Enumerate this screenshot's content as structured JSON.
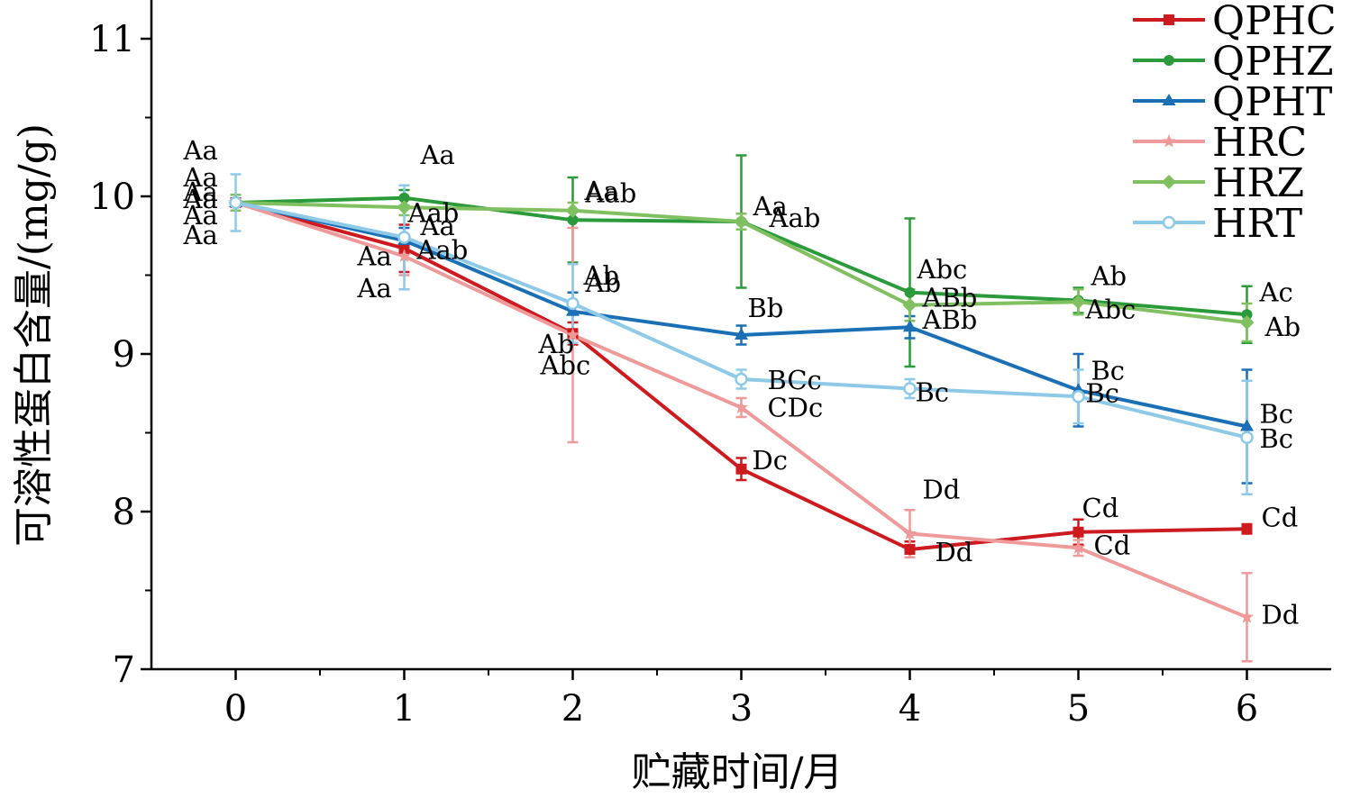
{
  "chart_data": {
    "type": "line",
    "title": "",
    "xlabel": "贮藏时间/月",
    "ylabel": "可溶性蛋白含量/(mg/g)",
    "x": [
      0,
      1,
      2,
      3,
      4,
      5,
      6
    ],
    "x_tick_labels": [
      "0",
      "1",
      "2",
      "3",
      "4",
      "5",
      "6"
    ],
    "xlim": [
      -0.5,
      6.5
    ],
    "y_ticks": [
      7,
      8,
      9,
      10,
      11
    ],
    "y_tick_labels": [
      "7",
      "8",
      "9",
      "10",
      "11"
    ],
    "ylim": [
      7,
      11.2
    ],
    "legend_position": "top-right",
    "series": [
      {
        "name": "QPHC",
        "color": "#cc1a1f",
        "marker": "square",
        "values": [
          9.96,
          9.67,
          9.13,
          8.27,
          7.76,
          7.87,
          7.89
        ],
        "errors": [
          0.05,
          0.15,
          0.07,
          0.07,
          0.05,
          0.08,
          0.03
        ],
        "labels": [
          "Aa",
          "Aa",
          "Abc",
          "Dc",
          "Dd",
          "Cd",
          "Cd"
        ]
      },
      {
        "name": "QPHZ",
        "color": "#2a9a3a",
        "marker": "circle",
        "values": [
          9.96,
          9.99,
          9.85,
          9.84,
          9.39,
          9.34,
          9.25
        ],
        "errors": [
          0.05,
          0.05,
          0.27,
          0.42,
          0.47,
          0.08,
          0.18
        ],
        "labels": [
          "Aa",
          "Aa",
          "Aab",
          "Aa",
          "Abc",
          "Ab",
          "Ac"
        ]
      },
      {
        "name": "QPHT",
        "color": "#1a6fb5",
        "marker": "triangle",
        "values": [
          9.96,
          9.72,
          9.27,
          9.12,
          9.17,
          8.77,
          8.54
        ],
        "errors": [
          0.05,
          0.08,
          0.12,
          0.06,
          0.07,
          0.23,
          0.36
        ],
        "labels": [
          "Aa",
          "Aa",
          "Ab",
          "Bb",
          "ABb",
          "Bc",
          "Bc"
        ]
      },
      {
        "name": "HRC",
        "color": "#ef9a9a",
        "marker": "star",
        "values": [
          9.96,
          9.62,
          9.12,
          8.66,
          7.86,
          7.77,
          7.33
        ],
        "errors": [
          0.05,
          0.12,
          0.68,
          0.06,
          0.15,
          0.05,
          0.28
        ],
        "labels": [
          "Aa",
          "Aa",
          "Ab",
          "CDc",
          "Dd",
          "Cd",
          "Dd"
        ]
      },
      {
        "name": "HRZ",
        "color": "#80c060",
        "marker": "diamond",
        "values": [
          9.96,
          9.93,
          9.91,
          9.84,
          9.31,
          9.33,
          9.2
        ],
        "errors": [
          0.05,
          0.05,
          0.05,
          0.05,
          0.1,
          0.08,
          0.12
        ],
        "labels": [
          "Aa",
          "Aab",
          "Aa",
          "Aab",
          "ABb",
          "Abc",
          "Ab"
        ]
      },
      {
        "name": "HRT",
        "color": "#8ecae8",
        "marker": "open-circle",
        "values": [
          9.96,
          9.74,
          9.32,
          8.84,
          8.78,
          8.73,
          8.47
        ],
        "errors": [
          0.18,
          0.33,
          0.25,
          0.06,
          0.06,
          0.17,
          0.36
        ],
        "labels": [
          "Aa",
          "Aab",
          "Ab",
          "BCc",
          "Bc",
          "Bc",
          "Bc"
        ]
      }
    ]
  }
}
